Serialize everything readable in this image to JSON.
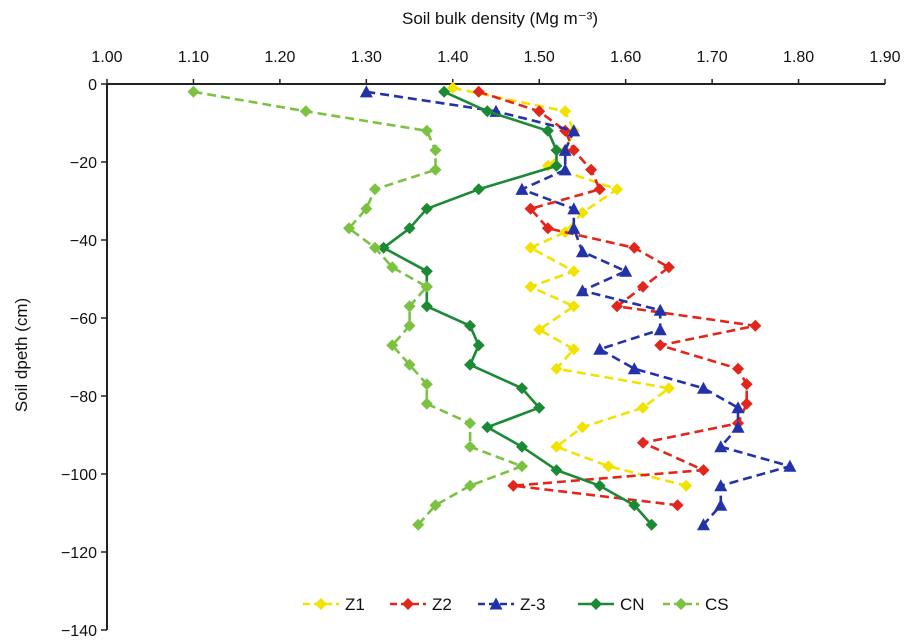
{
  "chart_data": {
    "type": "line",
    "xlabel": "Soil bulk density (Mg m⁻³)",
    "ylabel": "Soil dpeth (cm)",
    "xlim": [
      1.0,
      1.9
    ],
    "ylim": [
      -140,
      0
    ],
    "x_ticks": [
      "1.00",
      "1.10",
      "1.20",
      "1.30",
      "1.40",
      "1.50",
      "1.60",
      "1.70",
      "1.80",
      "1.90"
    ],
    "y_ticks": [
      "0",
      "−20",
      "−40",
      "−60",
      "−80",
      "−100",
      "−120",
      "−140"
    ],
    "x_axis_position": "top",
    "legend_position": "bottom-center",
    "grid": false,
    "series": [
      {
        "name": "Z1",
        "color": "#f2e200",
        "marker": "diamond",
        "line": "dashed",
        "points": [
          [
            1.4,
            -1
          ],
          [
            1.53,
            -7
          ],
          [
            1.54,
            -12
          ],
          [
            1.53,
            -17
          ],
          [
            1.51,
            -21
          ],
          [
            1.59,
            -27
          ],
          [
            1.55,
            -33
          ],
          [
            1.53,
            -38
          ],
          [
            1.49,
            -42
          ],
          [
            1.54,
            -48
          ],
          [
            1.49,
            -52
          ],
          [
            1.54,
            -57
          ],
          [
            1.5,
            -63
          ],
          [
            1.54,
            -68
          ],
          [
            1.52,
            -73
          ],
          [
            1.65,
            -78
          ],
          [
            1.62,
            -83
          ],
          [
            1.55,
            -88
          ],
          [
            1.52,
            -93
          ],
          [
            1.58,
            -98
          ],
          [
            1.67,
            -103
          ]
        ]
      },
      {
        "name": "Z2",
        "color": "#e3261c",
        "marker": "diamond",
        "line": "dashed",
        "points": [
          [
            1.43,
            -2
          ],
          [
            1.5,
            -7
          ],
          [
            1.53,
            -12
          ],
          [
            1.54,
            -17
          ],
          [
            1.56,
            -22
          ],
          [
            1.57,
            -27
          ],
          [
            1.49,
            -32
          ],
          [
            1.51,
            -37
          ],
          [
            1.61,
            -42
          ],
          [
            1.65,
            -47
          ],
          [
            1.62,
            -52
          ],
          [
            1.59,
            -57
          ],
          [
            1.75,
            -62
          ],
          [
            1.64,
            -67
          ],
          [
            1.73,
            -73
          ],
          [
            1.74,
            -77
          ],
          [
            1.74,
            -82
          ],
          [
            1.73,
            -87
          ],
          [
            1.62,
            -92
          ],
          [
            1.69,
            -99
          ],
          [
            1.47,
            -103
          ],
          [
            1.66,
            -108
          ]
        ]
      },
      {
        "name": "Z-3",
        "color": "#2332a8",
        "marker": "triangle",
        "line": "dashed",
        "points": [
          [
            1.3,
            -2
          ],
          [
            1.45,
            -7
          ],
          [
            1.54,
            -12
          ],
          [
            1.53,
            -17
          ],
          [
            1.53,
            -22
          ],
          [
            1.48,
            -27
          ],
          [
            1.54,
            -32
          ],
          [
            1.54,
            -37
          ],
          [
            1.55,
            -43
          ],
          [
            1.6,
            -48
          ],
          [
            1.55,
            -53
          ],
          [
            1.64,
            -58
          ],
          [
            1.64,
            -63
          ],
          [
            1.57,
            -68
          ],
          [
            1.61,
            -73
          ],
          [
            1.69,
            -78
          ],
          [
            1.73,
            -83
          ],
          [
            1.73,
            -88
          ],
          [
            1.71,
            -93
          ],
          [
            1.79,
            -98
          ],
          [
            1.71,
            -103
          ],
          [
            1.71,
            -108
          ],
          [
            1.69,
            -113
          ]
        ]
      },
      {
        "name": "CN",
        "color": "#1c8a34",
        "marker": "diamond",
        "line": "solid",
        "points": [
          [
            1.39,
            -2
          ],
          [
            1.44,
            -7
          ],
          [
            1.51,
            -12
          ],
          [
            1.52,
            -17
          ],
          [
            1.52,
            -21
          ],
          [
            1.43,
            -27
          ],
          [
            1.37,
            -32
          ],
          [
            1.35,
            -37
          ],
          [
            1.32,
            -42
          ],
          [
            1.37,
            -48
          ],
          [
            1.37,
            -52
          ],
          [
            1.37,
            -57
          ],
          [
            1.42,
            -62
          ],
          [
            1.43,
            -67
          ],
          [
            1.42,
            -72
          ],
          [
            1.48,
            -78
          ],
          [
            1.5,
            -83
          ],
          [
            1.44,
            -88
          ],
          [
            1.48,
            -93
          ],
          [
            1.52,
            -99
          ],
          [
            1.57,
            -103
          ],
          [
            1.61,
            -108
          ],
          [
            1.63,
            -113
          ]
        ]
      },
      {
        "name": "CS",
        "color": "#7cc242",
        "marker": "diamond",
        "line": "dashed",
        "points": [
          [
            1.1,
            -2
          ],
          [
            1.23,
            -7
          ],
          [
            1.37,
            -12
          ],
          [
            1.38,
            -17
          ],
          [
            1.38,
            -22
          ],
          [
            1.31,
            -27
          ],
          [
            1.3,
            -32
          ],
          [
            1.28,
            -37
          ],
          [
            1.31,
            -42
          ],
          [
            1.33,
            -47
          ],
          [
            1.37,
            -52
          ],
          [
            1.35,
            -57
          ],
          [
            1.35,
            -62
          ],
          [
            1.33,
            -67
          ],
          [
            1.35,
            -72
          ],
          [
            1.37,
            -77
          ],
          [
            1.37,
            -82
          ],
          [
            1.42,
            -87
          ],
          [
            1.42,
            -93
          ],
          [
            1.48,
            -98
          ],
          [
            1.42,
            -103
          ],
          [
            1.38,
            -108
          ],
          [
            1.36,
            -113
          ]
        ]
      }
    ]
  }
}
